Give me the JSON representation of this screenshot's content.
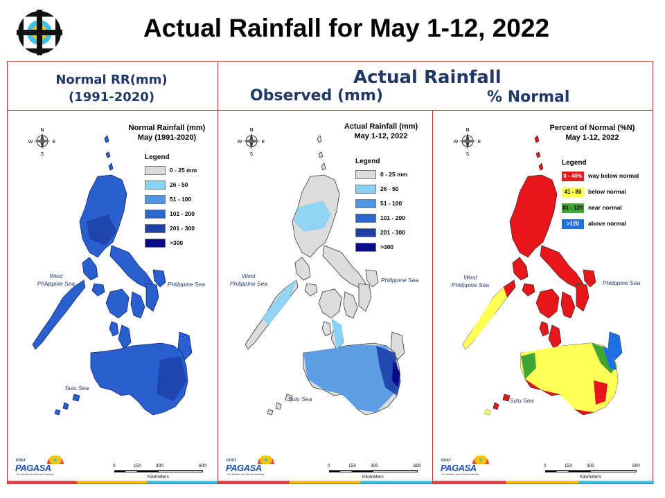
{
  "header": {
    "title": "Actual Rainfall for May 1-12, 2022",
    "normal_line1": "Normal RR(mm)",
    "normal_line2": "(1991-2020)",
    "actual_heading": "Actual Rainfall",
    "observed_label": "Observed (mm)",
    "percent_label": "% Normal"
  },
  "panels": {
    "normal": {
      "title_line1": "Normal Rainfall (mm)",
      "title_line2": "May (1991-2020)",
      "legend_title": "Legend",
      "legend": [
        {
          "label": "0 - 25 mm",
          "color": "#dcdcdc"
        },
        {
          "label": "26 - 50",
          "color": "#87d2f5"
        },
        {
          "label": "51 - 100",
          "color": "#4f97e6"
        },
        {
          "label": "101 - 200",
          "color": "#2a66cc"
        },
        {
          "label": "201 - 300",
          "color": "#1c3fa8"
        },
        {
          "label": ">300",
          "color": "#0b0b8a"
        }
      ]
    },
    "actual": {
      "title_line1": "Actual Rainfall (mm)",
      "title_line2": "May 1-12, 2022",
      "legend_title": "Legend",
      "legend": [
        {
          "label": "0 - 25 mm",
          "color": "#dcdcdc"
        },
        {
          "label": "26 - 50",
          "color": "#87d2f5"
        },
        {
          "label": "51 - 100",
          "color": "#4f97e6"
        },
        {
          "label": "101 - 200",
          "color": "#2a66cc"
        },
        {
          "label": "201 - 300",
          "color": "#1c3fa8"
        },
        {
          "label": ">300",
          "color": "#0b0b8a"
        }
      ]
    },
    "percent": {
      "title_line1": "Percent of Normal (%N)",
      "title_line2": "May 1-12, 2022",
      "legend_title": "Legend",
      "legend": [
        {
          "range": "0 - 40%",
          "label": "way below normal",
          "color": "#e8161a",
          "text_color": "#ffffff"
        },
        {
          "range": "41 - 80",
          "label": "below normal",
          "color": "#ffff55",
          "text_color": "#000000"
        },
        {
          "range": "81 - 120",
          "label": "near normal",
          "color": "#3fa535",
          "text_color": "#000000"
        },
        {
          "range": ">120",
          "label": "above normal",
          "color": "#1f6fe0",
          "text_color": "#ffffff"
        }
      ]
    }
  },
  "seas": {
    "west": "West\nPhilippine Sea",
    "east": "Philippine Sea",
    "sulu": "Sulu Sea"
  },
  "compass": {
    "n": "N",
    "s": "S",
    "e": "E",
    "w": "W"
  },
  "scale": {
    "ticks": [
      "0",
      "150",
      "300",
      "600"
    ],
    "unit": "Kilometers"
  },
  "logo": {
    "small_text": "DOST",
    "brand": "PAGASA",
    "tagline": "The Weather and Climate Authority"
  }
}
